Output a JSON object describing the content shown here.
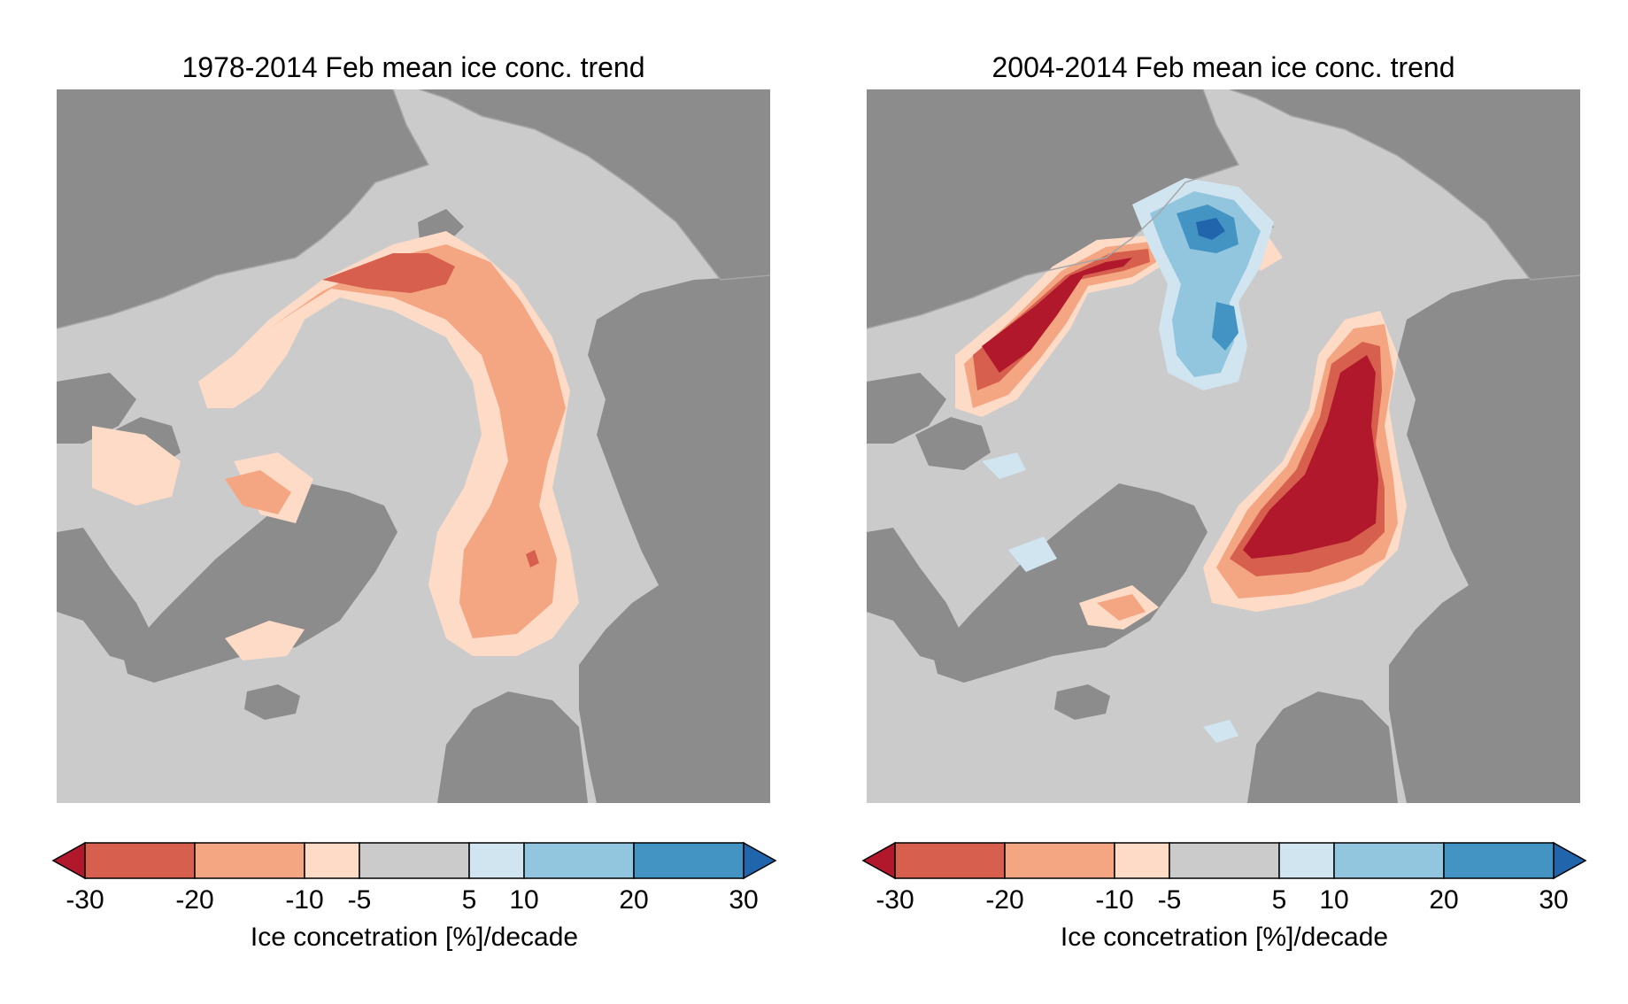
{
  "colors": {
    "land": "#8c8c8c",
    "ocean": "#cbcbcb",
    "coast_line": "#a6a6a6"
  },
  "colorbar": {
    "label": "Ice concetration [%]/decade",
    "tick_labels": [
      "-30",
      "-20",
      "-10",
      "-5",
      "5",
      "10",
      "20",
      "30"
    ],
    "bins": [
      {
        "range": [
          -999,
          -30
        ],
        "color": "#b2182b",
        "kind": "under"
      },
      {
        "range": [
          -30,
          -20
        ],
        "color": "#d6604d"
      },
      {
        "range": [
          -20,
          -10
        ],
        "color": "#f4a582"
      },
      {
        "range": [
          -10,
          -5
        ],
        "color": "#fddbc7"
      },
      {
        "range": [
          -5,
          5
        ],
        "color": "#cbcbcb"
      },
      {
        "range": [
          5,
          10
        ],
        "color": "#d1e5f0"
      },
      {
        "range": [
          10,
          20
        ],
        "color": "#92c5de"
      },
      {
        "range": [
          20,
          30
        ],
        "color": "#4393c3"
      },
      {
        "range": [
          30,
          999
        ],
        "color": "#2166ac",
        "kind": "over"
      }
    ]
  },
  "panels": [
    {
      "title": "1978-2014 Feb mean ice conc. trend",
      "projection": "north-polar-stereographic",
      "trend_levels_present": [
        "-30 to -20",
        "-20 to -10",
        "-10 to -5"
      ]
    },
    {
      "title": "2004-2014 Feb mean ice conc. trend",
      "projection": "north-polar-stereographic",
      "trend_levels_present": [
        "< -30",
        "-30 to -20",
        "-20 to -10",
        "-10 to -5",
        "5 to 10",
        "10 to 20",
        "20 to 30",
        "> 30"
      ]
    }
  ]
}
